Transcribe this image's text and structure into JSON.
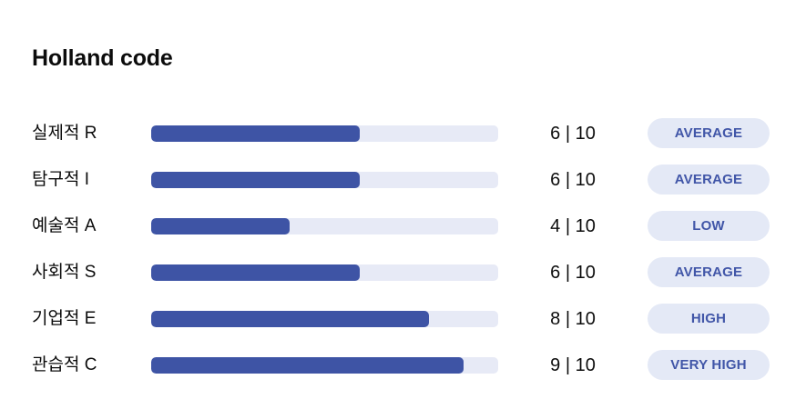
{
  "title": "Holland code",
  "colors": {
    "background": "#ffffff",
    "title_text": "#0c0c0c",
    "label_text": "#0c0c0c",
    "score_text": "#0c0c0c",
    "bar_fill": "#3e54a5",
    "bar_track": "#e7eaf6",
    "badge_bg": "#e4e9f6",
    "badge_text": "#4156a8"
  },
  "chart_data": {
    "type": "bar",
    "title": "Holland code",
    "orientation": "horizontal",
    "xlim": [
      0,
      10
    ],
    "max_score": 10,
    "categories": [
      "실제적 R",
      "탐구적 I",
      "예술적 A",
      "사회적 S",
      "기업적 E",
      "관습적 C"
    ],
    "values": [
      6,
      6,
      4,
      6,
      8,
      9
    ],
    "rows": [
      {
        "label": "실제적 R",
        "value": 6,
        "max": 10,
        "score_text": "6 | 10",
        "badge": "AVERAGE"
      },
      {
        "label": "탐구적 I",
        "value": 6,
        "max": 10,
        "score_text": "6 | 10",
        "badge": "AVERAGE"
      },
      {
        "label": "예술적 A",
        "value": 4,
        "max": 10,
        "score_text": "4 | 10",
        "badge": "LOW"
      },
      {
        "label": "사회적 S",
        "value": 6,
        "max": 10,
        "score_text": "6 | 10",
        "badge": "AVERAGE"
      },
      {
        "label": "기업적 E",
        "value": 8,
        "max": 10,
        "score_text": "8 | 10",
        "badge": "HIGH"
      },
      {
        "label": "관습적 C",
        "value": 9,
        "max": 10,
        "score_text": "9 | 10",
        "badge": "VERY HIGH"
      }
    ]
  }
}
